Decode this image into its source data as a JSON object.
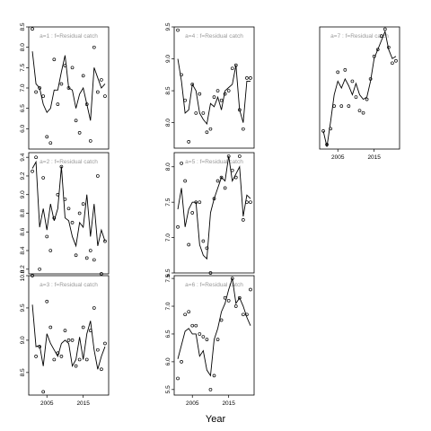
{
  "figure": {
    "xlabel": "Year"
  },
  "chart_data": [
    {
      "type": "line",
      "title": "a=1  :  f=Residual catch",
      "xlim": [
        2000,
        2022
      ],
      "ylim": [
        5.5,
        8.5
      ],
      "xticks": [],
      "yticks": [
        6.0,
        6.5,
        7.0,
        7.5,
        8.0,
        8.5
      ],
      "ytick_labels": [
        "6.0",
        "6.5",
        "7.0",
        "7.5",
        "8.0",
        "8.5"
      ],
      "series": [
        {
          "style": "line",
          "x": [
            2001,
            2002,
            2003,
            2004,
            2005,
            2006,
            2007,
            2008,
            2009,
            2010,
            2011,
            2012,
            2013,
            2014,
            2015,
            2016,
            2017,
            2018,
            2019,
            2020,
            2021
          ],
          "y": [
            7.9,
            7.1,
            7.0,
            6.6,
            6.4,
            6.5,
            6.95,
            6.95,
            7.4,
            7.8,
            7.0,
            6.95,
            6.5,
            6.85,
            7.0,
            6.6,
            6.2,
            7.5,
            7.25,
            7.0,
            7.1
          ]
        },
        {
          "style": "points",
          "x": [
            2001,
            2002,
            2003,
            2004,
            2005,
            2006,
            2007,
            2008,
            2009,
            2010,
            2011,
            2012,
            2013,
            2014,
            2015,
            2016,
            2017,
            2018,
            2019,
            2020,
            2021
          ],
          "y": [
            8.45,
            6.9,
            7.0,
            6.8,
            5.8,
            5.65,
            7.7,
            6.6,
            7.1,
            7.55,
            7.0,
            7.5,
            6.2,
            5.9,
            7.3,
            6.6,
            5.7,
            8.0,
            6.9,
            7.2,
            6.8
          ]
        }
      ]
    },
    {
      "type": "line",
      "title": "a=2  :  f=Residual catch",
      "xlim": [
        2000,
        2022
      ],
      "ylim": [
        8.15,
        9.45
      ],
      "xticks": [],
      "yticks": [
        8.2,
        8.4,
        8.6,
        8.8,
        9.0,
        9.2,
        9.4
      ],
      "ytick_labels": [
        "8.2",
        "8.4",
        "8.6",
        "8.8",
        "9.0",
        "9.2",
        "9.4"
      ],
      "series": [
        {
          "style": "line",
          "x": [
            2001,
            2002,
            2003,
            2004,
            2005,
            2006,
            2007,
            2008,
            2009,
            2010,
            2011,
            2012,
            2013,
            2014,
            2015,
            2016,
            2017,
            2018,
            2019,
            2020,
            2021
          ],
          "y": [
            9.28,
            9.35,
            8.65,
            8.85,
            8.62,
            8.9,
            8.72,
            8.85,
            9.3,
            8.75,
            8.72,
            8.55,
            8.45,
            8.7,
            8.65,
            9.0,
            8.55,
            8.9,
            8.45,
            8.62,
            8.5
          ]
        },
        {
          "style": "points",
          "x": [
            2001,
            2002,
            2003,
            2004,
            2005,
            2006,
            2007,
            2008,
            2009,
            2010,
            2011,
            2012,
            2013,
            2014,
            2015,
            2016,
            2017,
            2018,
            2019,
            2020,
            2021
          ],
          "y": [
            9.25,
            9.4,
            8.2,
            9.18,
            8.55,
            8.4,
            8.75,
            9.0,
            9.3,
            8.95,
            8.85,
            8.7,
            8.35,
            8.8,
            8.9,
            8.32,
            8.4,
            8.3,
            9.2,
            8.15,
            8.5
          ]
        }
      ]
    },
    {
      "type": "line",
      "title": "a=3  :  f=Residual catch",
      "xlim": [
        2000,
        2022
      ],
      "ylim": [
        8.15,
        10.0
      ],
      "xticks": [
        2005,
        2015
      ],
      "yticks": [
        8.5,
        9.0,
        9.5,
        10.0
      ],
      "ytick_labels": [
        "8.5",
        "9.0",
        "9.5",
        "10.0"
      ],
      "series": [
        {
          "style": "line",
          "x": [
            2001,
            2002,
            2003,
            2004,
            2005,
            2006,
            2007,
            2008,
            2009,
            2010,
            2011,
            2012,
            2013,
            2014,
            2015,
            2016,
            2017,
            2018,
            2019,
            2020,
            2021
          ],
          "y": [
            9.55,
            8.9,
            8.92,
            8.6,
            9.1,
            8.95,
            8.85,
            8.75,
            8.95,
            9.0,
            8.95,
            8.6,
            8.7,
            9.05,
            8.7,
            9.1,
            9.3,
            8.85,
            8.55,
            8.75,
            8.9
          ]
        },
        {
          "style": "points",
          "x": [
            2001,
            2002,
            2003,
            2004,
            2005,
            2006,
            2007,
            2008,
            2009,
            2010,
            2011,
            2012,
            2013,
            2014,
            2015,
            2016,
            2017,
            2018,
            2019,
            2020,
            2021
          ],
          "y": [
            10.0,
            8.75,
            8.9,
            8.2,
            9.6,
            9.2,
            8.7,
            8.8,
            8.75,
            9.15,
            9.0,
            9.0,
            8.6,
            8.7,
            9.2,
            8.7,
            9.15,
            9.5,
            8.85,
            8.55,
            8.95
          ]
        }
      ]
    },
    {
      "type": "line",
      "title": "a=4  :  f=Residual catch",
      "xlim": [
        2000,
        2022
      ],
      "ylim": [
        7.6,
        9.5
      ],
      "xticks": [],
      "yticks": [
        8.0,
        8.5,
        9.0,
        9.5
      ],
      "ytick_labels": [
        "8.0",
        "8.5",
        "9.0",
        "9.5"
      ],
      "series": [
        {
          "style": "line",
          "x": [
            2001,
            2002,
            2003,
            2004,
            2005,
            2006,
            2007,
            2008,
            2009,
            2010,
            2011,
            2012,
            2013,
            2014,
            2015,
            2016,
            2017,
            2018,
            2019,
            2020,
            2021
          ],
          "y": [
            9.0,
            8.65,
            8.15,
            8.2,
            8.6,
            8.5,
            8.15,
            8.05,
            7.98,
            8.3,
            8.25,
            8.4,
            8.2,
            8.5,
            8.55,
            8.6,
            8.9,
            8.2,
            8.0,
            8.65,
            8.65
          ]
        },
        {
          "style": "points",
          "x": [
            2001,
            2002,
            2003,
            2004,
            2005,
            2006,
            2007,
            2008,
            2009,
            2010,
            2011,
            2012,
            2013,
            2014,
            2015,
            2016,
            2017,
            2018,
            2019,
            2020,
            2021
          ],
          "y": [
            9.45,
            8.75,
            8.35,
            7.7,
            8.6,
            8.15,
            8.45,
            8.15,
            7.85,
            7.9,
            8.4,
            8.5,
            8.35,
            8.45,
            8.5,
            8.85,
            8.9,
            8.2,
            7.9,
            8.7,
            8.7
          ]
        }
      ]
    },
    {
      "type": "line",
      "title": "a=5  :  f=Residual catch",
      "xlim": [
        2000,
        2022
      ],
      "ylim": [
        6.5,
        8.2
      ],
      "xticks": [],
      "yticks": [
        6.5,
        7.0,
        7.5,
        8.0
      ],
      "ytick_labels": [
        "6.5",
        "7.0",
        "7.5",
        "8.0"
      ],
      "series": [
        {
          "style": "line",
          "x": [
            2001,
            2002,
            2003,
            2004,
            2005,
            2006,
            2007,
            2008,
            2009,
            2010,
            2011,
            2012,
            2013,
            2014,
            2015,
            2016,
            2017,
            2018,
            2019,
            2020,
            2021
          ],
          "y": [
            7.4,
            7.7,
            7.15,
            7.4,
            7.5,
            7.5,
            6.9,
            6.75,
            6.7,
            7.35,
            7.55,
            7.7,
            7.85,
            7.8,
            8.15,
            7.8,
            7.9,
            8.0,
            7.3,
            7.6,
            7.55
          ]
        },
        {
          "style": "points",
          "x": [
            2001,
            2002,
            2003,
            2004,
            2005,
            2006,
            2007,
            2008,
            2009,
            2010,
            2011,
            2012,
            2013,
            2014,
            2015,
            2016,
            2017,
            2018,
            2019,
            2020,
            2021
          ],
          "y": [
            7.15,
            8.05,
            7.8,
            6.9,
            7.35,
            7.5,
            7.5,
            6.95,
            6.85,
            6.5,
            7.55,
            7.8,
            7.85,
            7.7,
            8.15,
            7.95,
            7.85,
            8.15,
            7.25,
            7.5,
            7.5
          ]
        }
      ]
    },
    {
      "type": "line",
      "title": "a=6  :  f=Residual catch",
      "xlim": [
        2000,
        2022
      ],
      "ylim": [
        5.4,
        7.55
      ],
      "xticks": [
        2005,
        2015
      ],
      "yticks": [
        5.5,
        6.0,
        6.5,
        7.0,
        7.5
      ],
      "ytick_labels": [
        "5.5",
        "6.0",
        "6.5",
        "7.0",
        "7.5"
      ],
      "series": [
        {
          "style": "line",
          "x": [
            2001,
            2002,
            2003,
            2004,
            2005,
            2006,
            2007,
            2008,
            2009,
            2010,
            2011,
            2012,
            2013,
            2014,
            2015,
            2016,
            2017,
            2018,
            2019,
            2020,
            2021
          ],
          "y": [
            6.05,
            6.3,
            6.55,
            6.6,
            6.5,
            6.5,
            6.1,
            6.2,
            5.85,
            5.75,
            6.4,
            6.6,
            6.9,
            7.05,
            7.3,
            7.5,
            7.05,
            7.15,
            7.0,
            6.8,
            6.65
          ]
        },
        {
          "style": "points",
          "x": [
            2001,
            2002,
            2003,
            2004,
            2005,
            2006,
            2007,
            2008,
            2009,
            2010,
            2011,
            2012,
            2013,
            2014,
            2015,
            2016,
            2017,
            2018,
            2019,
            2020,
            2021
          ],
          "y": [
            5.7,
            6.0,
            6.85,
            6.9,
            6.65,
            6.65,
            6.5,
            6.45,
            6.4,
            5.5,
            5.75,
            6.4,
            6.75,
            7.15,
            7.1,
            7.5,
            7.0,
            7.15,
            6.85,
            6.85,
            7.3
          ]
        }
      ]
    },
    {
      "type": "line",
      "title": "a=7  :  f=Residual catch",
      "xlim": [
        2000,
        2022
      ],
      "ylim": [
        4.9,
        7.6
      ],
      "xticks": [
        2005,
        2015
      ],
      "yticks": [],
      "ytick_labels": [],
      "series": [
        {
          "style": "line",
          "x": [
            2001,
            2002,
            2003,
            2004,
            2005,
            2006,
            2007,
            2008,
            2009,
            2010,
            2011,
            2012,
            2013,
            2014,
            2015,
            2016,
            2017,
            2018,
            2019,
            2020,
            2021
          ],
          "y": [
            5.3,
            4.95,
            5.5,
            6.1,
            6.4,
            6.25,
            6.45,
            6.3,
            6.1,
            6.35,
            6.1,
            6.0,
            6.05,
            6.4,
            6.9,
            7.1,
            7.3,
            7.5,
            7.1,
            6.9,
            6.95
          ]
        },
        {
          "style": "points",
          "x": [
            2001,
            2002,
            2003,
            2004,
            2005,
            2006,
            2007,
            2008,
            2009,
            2010,
            2011,
            2012,
            2013,
            2014,
            2015,
            2016,
            2017,
            2018,
            2019,
            2020,
            2021
          ],
          "y": [
            5.3,
            5.0,
            5.35,
            5.85,
            6.6,
            5.85,
            6.65,
            5.85,
            6.4,
            6.05,
            5.75,
            5.7,
            6.0,
            6.45,
            6.95,
            7.1,
            7.4,
            7.55,
            7.15,
            6.8,
            6.85
          ]
        }
      ]
    }
  ]
}
